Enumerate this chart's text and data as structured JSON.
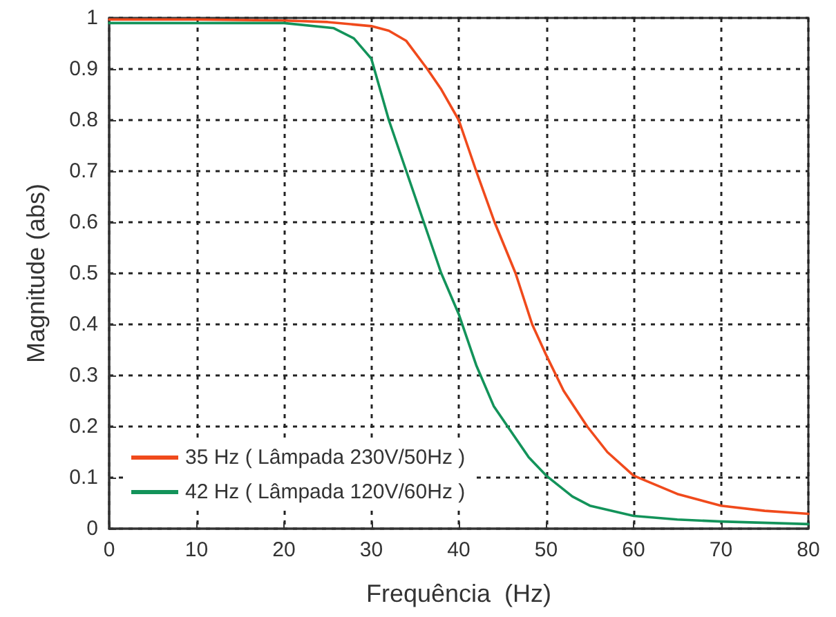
{
  "chart_data": {
    "type": "line",
    "xlabel": "Frequência  (Hz)",
    "ylabel": "Magnitude (abs)",
    "xlim": [
      0,
      80
    ],
    "xticks": [
      0,
      10,
      20,
      30,
      40,
      50,
      60,
      70,
      80
    ],
    "ylim": [
      0,
      1
    ],
    "yticks": [
      0,
      0.1,
      0.2,
      0.3,
      0.4,
      0.5,
      0.6,
      0.7,
      0.8,
      0.9,
      1
    ],
    "grid": true,
    "legend": "bottom left",
    "marker": "none",
    "line_style": "solid",
    "series": [
      {
        "name": "35 Hz ( Lâmpada 230V/50Hz )",
        "color": "#f04a1c",
        "x": [
          0,
          10,
          20,
          25,
          30,
          32,
          34,
          36.4,
          38,
          40,
          42,
          44.1,
          46.5,
          48.4,
          50,
          52,
          54.7,
          57,
          60,
          65,
          70,
          75,
          80
        ],
        "values": [
          0.997,
          0.997,
          0.995,
          0.992,
          0.984,
          0.975,
          0.955,
          0.9,
          0.86,
          0.8,
          0.7,
          0.6,
          0.5,
          0.4,
          0.34,
          0.27,
          0.2,
          0.15,
          0.104,
          0.068,
          0.045,
          0.035,
          0.029
        ]
      },
      {
        "name": "42 Hz ( Lâmpada 120V/60Hz )",
        "color": "#13935a",
        "x": [
          0,
          10,
          20,
          25.7,
          28,
          30,
          32,
          34,
          36,
          38,
          40,
          42,
          44,
          46,
          48,
          50,
          53,
          55,
          60,
          65,
          70,
          80
        ],
        "values": [
          0.99,
          0.99,
          0.99,
          0.98,
          0.96,
          0.92,
          0.8,
          0.7,
          0.6,
          0.5,
          0.42,
          0.32,
          0.24,
          0.19,
          0.14,
          0.104,
          0.063,
          0.045,
          0.025,
          0.018,
          0.014,
          0.009
        ]
      }
    ]
  }
}
